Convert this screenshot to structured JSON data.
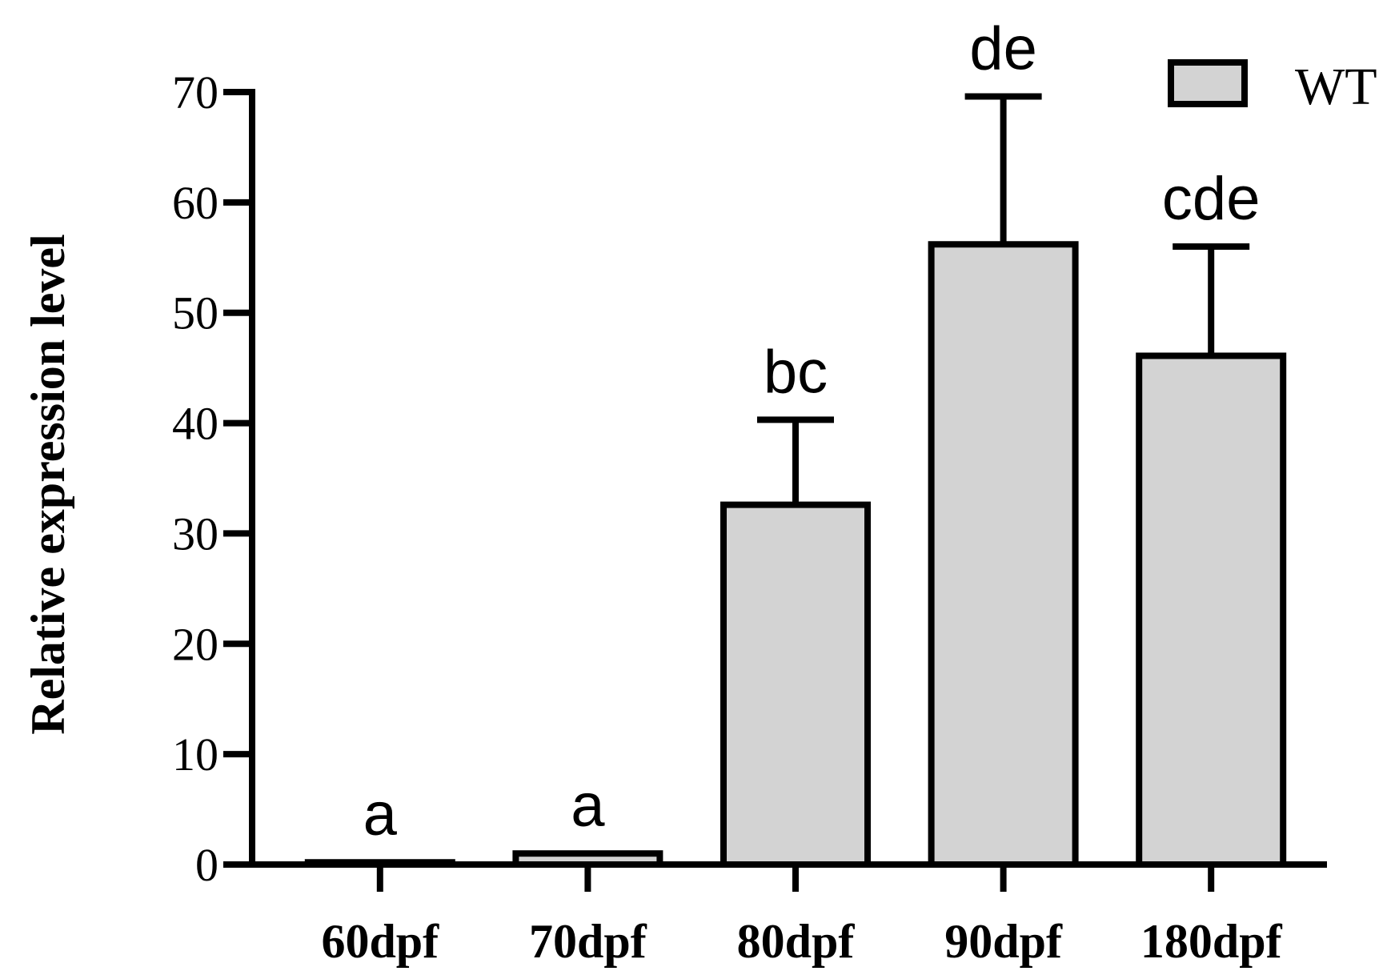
{
  "chart_data": {
    "type": "bar",
    "ylabel": "Relative expression level",
    "xlabel": "",
    "ylim": [
      0,
      70
    ],
    "yticks": [
      0,
      10,
      20,
      30,
      40,
      50,
      60,
      70
    ],
    "categories": [
      "60dpf",
      "70dpf",
      "80dpf",
      "90dpf",
      "180dpf"
    ],
    "series": [
      {
        "name": "WT",
        "values": [
          0.2,
          1.0,
          32.6,
          56.2,
          46.1
        ],
        "errors": [
          0.05,
          0.1,
          7.7,
          13.4,
          9.9
        ],
        "significance": [
          "a",
          "a",
          "bc",
          "de",
          "cde"
        ]
      }
    ],
    "legend_position": "top-right",
    "bar_color": "#d3d3d3",
    "edge_color": "#000000"
  }
}
